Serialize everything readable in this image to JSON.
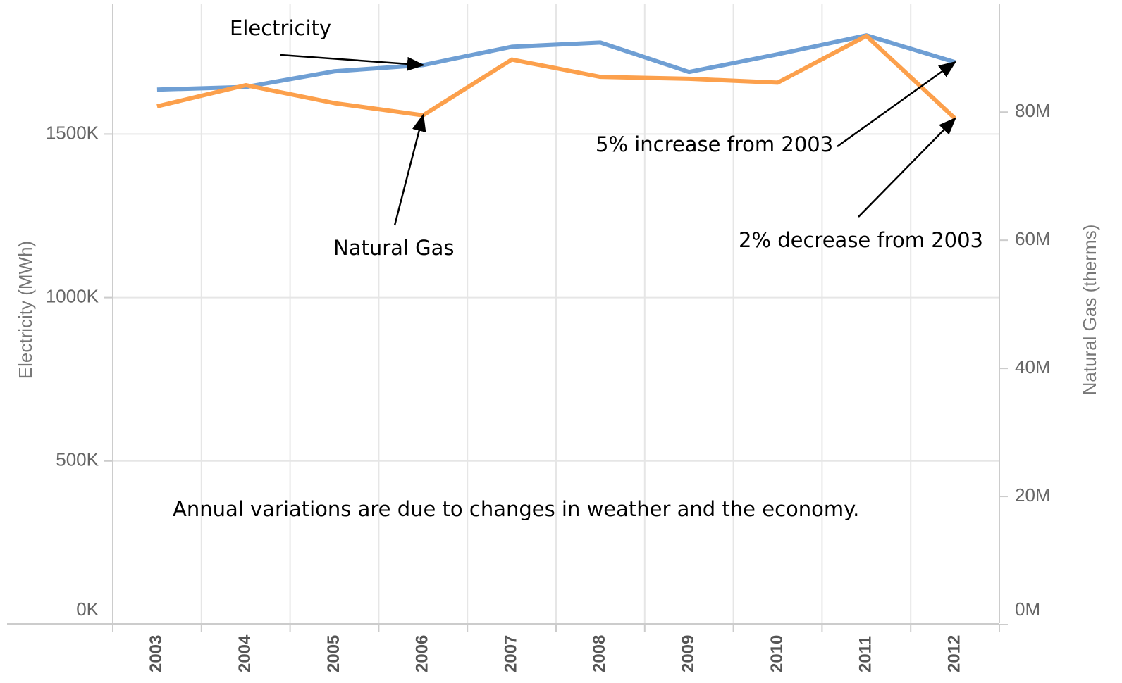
{
  "chart_data": {
    "type": "line",
    "categories": [
      "2003",
      "2004",
      "2005",
      "2006",
      "2007",
      "2008",
      "2009",
      "2010",
      "2011",
      "2012"
    ],
    "series": [
      {
        "name": "Electricity",
        "color": "#6f9fd4",
        "axis": "y",
        "values": [
          1636000,
          1644000,
          1692000,
          1711000,
          1767000,
          1780000,
          1690000,
          1744000,
          1802000,
          1720000
        ]
      },
      {
        "name": "Natural Gas",
        "color": "#fca04c",
        "axis": "y2",
        "values": [
          80900000,
          84200000,
          81400000,
          79500000,
          88200000,
          85500000,
          85200000,
          84600000,
          91900000,
          79000000
        ]
      }
    ],
    "y_label": "Electricity (MWh)",
    "y2_label": "Natural Gas (therms)",
    "ylim": [
      0,
      1910000
    ],
    "yticks": [
      {
        "value": 0,
        "label": "0K"
      },
      {
        "value": 500000,
        "label": "500K"
      },
      {
        "value": 1000000,
        "label": "1000K"
      },
      {
        "value": 1500000,
        "label": "1500K"
      }
    ],
    "y2lim": [
      0,
      97500000
    ],
    "y2ticks": [
      {
        "value": 0,
        "label": "0M"
      },
      {
        "value": 20000000,
        "label": "20M"
      },
      {
        "value": 40000000,
        "label": "40M"
      },
      {
        "value": 60000000,
        "label": "60M"
      },
      {
        "value": 80000000,
        "label": "80M"
      }
    ],
    "grid": true,
    "annotations": [
      "Electricity",
      "Natural Gas",
      "5% increase from 2003",
      "2% decrease from 2003",
      "Annual variations are due to changes in weather and the economy."
    ]
  }
}
